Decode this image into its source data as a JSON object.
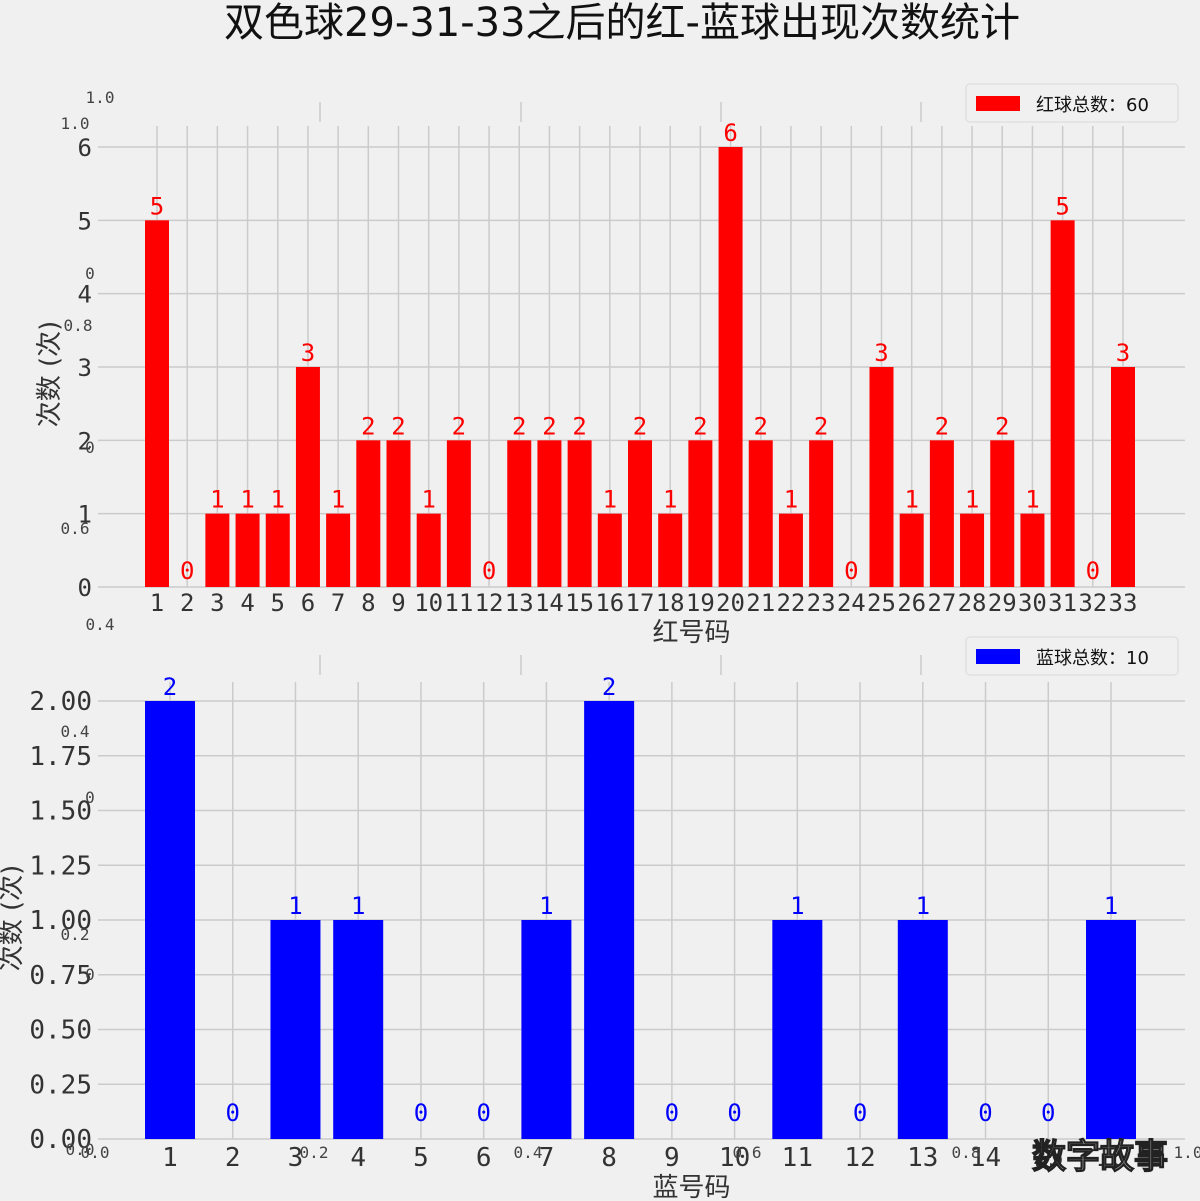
{
  "title": "双色球29-31-33之后的红-蓝球出现次数统计",
  "watermark": "数字故事",
  "ghost_ticks": {
    "left": [
      "1.0",
      "1.0",
      "0",
      "0.8",
      "0",
      "0.6",
      "0.4",
      "0.4",
      "0",
      "0.2",
      "0",
      "0.0"
    ],
    "bottom": [
      "0.0",
      "0.2",
      "0.4",
      "0.6",
      "0.8",
      "1.0"
    ]
  },
  "colors": {
    "red": "#ff0000",
    "blue": "#0000ff",
    "background": "#f0f0f0",
    "grid": "#cbcbcb"
  },
  "chart_data": [
    {
      "type": "bar",
      "xlabel": "红号码",
      "ylabel": "次数 (次)",
      "legend": "红球总数：60",
      "legend_position": "top-right",
      "categories": [
        "1",
        "2",
        "3",
        "4",
        "5",
        "6",
        "7",
        "8",
        "9",
        "10",
        "11",
        "12",
        "13",
        "14",
        "15",
        "16",
        "17",
        "18",
        "19",
        "20",
        "21",
        "22",
        "23",
        "24",
        "25",
        "26",
        "27",
        "28",
        "29",
        "30",
        "31",
        "32",
        "33"
      ],
      "values": [
        5,
        0,
        1,
        1,
        1,
        3,
        1,
        2,
        2,
        1,
        2,
        0,
        2,
        2,
        2,
        1,
        2,
        1,
        2,
        6,
        2,
        1,
        2,
        0,
        3,
        1,
        2,
        1,
        2,
        1,
        5,
        0,
        3
      ],
      "yticks": [
        "0",
        "1",
        "2",
        "3",
        "4",
        "5",
        "6"
      ],
      "ylim": [
        0,
        6
      ],
      "color": "#ff0000",
      "grid": true
    },
    {
      "type": "bar",
      "xlabel": "蓝号码",
      "ylabel": "次数 (次)",
      "legend": "蓝球总数：10",
      "legend_position": "top-right",
      "categories": [
        "1",
        "2",
        "3",
        "4",
        "5",
        "6",
        "7",
        "8",
        "9",
        "10",
        "11",
        "12",
        "13",
        "14",
        "15",
        "16"
      ],
      "values": [
        2,
        0,
        1,
        1,
        0,
        0,
        1,
        2,
        0,
        0,
        1,
        0,
        1,
        0,
        0,
        1
      ],
      "yticks": [
        "0.00",
        "0.25",
        "0.50",
        "0.75",
        "1.00",
        "1.25",
        "1.50",
        "1.75",
        "2.00"
      ],
      "ylim": [
        0,
        2
      ],
      "color": "#0000ff",
      "grid": true
    }
  ]
}
